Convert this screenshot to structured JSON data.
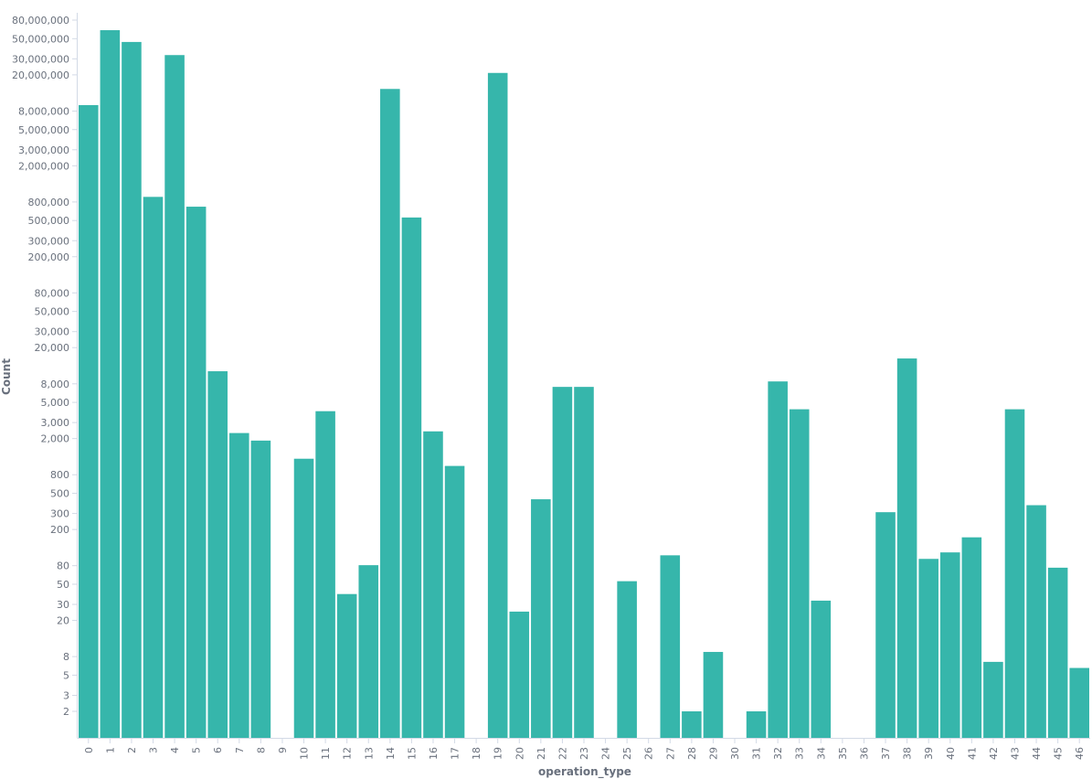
{
  "chart_data": {
    "type": "bar",
    "xlabel": "operation_type",
    "ylabel": "Count",
    "yscale": "log",
    "grid": false,
    "legend": "none",
    "bar_color": "#36b6ab",
    "axis_color": "#d3dae6",
    "label_color": "#6a717d",
    "categories": [
      "0",
      "1",
      "2",
      "3",
      "4",
      "5",
      "6",
      "7",
      "8",
      "9",
      "10",
      "11",
      "12",
      "13",
      "14",
      "15",
      "16",
      "17",
      "18",
      "19",
      "20",
      "21",
      "22",
      "23",
      "24",
      "25",
      "26",
      "27",
      "28",
      "29",
      "30",
      "31",
      "32",
      "33",
      "34",
      "35",
      "36",
      "37",
      "38",
      "39",
      "40",
      "41",
      "42",
      "43",
      "44",
      "45",
      "46"
    ],
    "values": [
      9300000,
      62000000,
      46000000,
      910000,
      33000000,
      710000,
      11000,
      2300,
      1900,
      null,
      1200,
      4000,
      39,
      81,
      14000000,
      540000,
      2400,
      1000,
      null,
      21000000,
      25,
      430,
      7400,
      7400,
      null,
      54,
      null,
      104,
      2,
      9,
      null,
      2,
      8500,
      4200,
      33,
      null,
      null,
      310,
      15200,
      95,
      112,
      164,
      7,
      4200,
      370,
      76,
      6
    ],
    "ytick_labels": [
      "2",
      "3",
      "5",
      "8",
      "20",
      "30",
      "50",
      "80",
      "200",
      "300",
      "500",
      "800",
      "2,000",
      "3,000",
      "5,000",
      "8,000",
      "20,000",
      "30,000",
      "50,000",
      "80,000",
      "200,000",
      "300,000",
      "500,000",
      "800,000",
      "2,000,000",
      "3,000,000",
      "5,000,000",
      "8,000,000",
      "20,000,000",
      "30,000,000",
      "50,000,000",
      "80,000,000"
    ],
    "ytick_values": [
      2,
      3,
      5,
      8,
      20,
      30,
      50,
      80,
      200,
      300,
      500,
      800,
      2000,
      3000,
      5000,
      8000,
      20000,
      30000,
      50000,
      80000,
      200000,
      300000,
      500000,
      800000,
      2000000,
      3000000,
      5000000,
      8000000,
      20000000,
      30000000,
      50000000,
      80000000
    ]
  }
}
